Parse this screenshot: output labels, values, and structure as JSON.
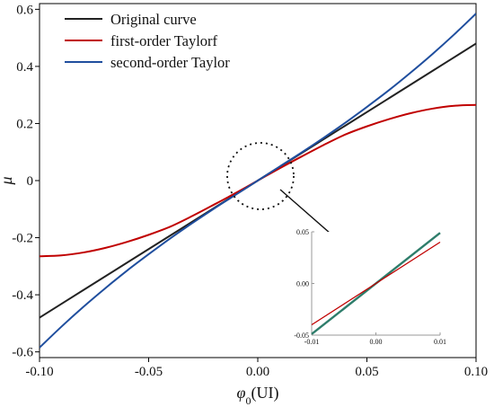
{
  "chart_data": [
    {
      "type": "line",
      "title": "",
      "xlabel": "φ0(UI)",
      "ylabel": "μ",
      "xlim": [
        -0.1,
        0.1
      ],
      "ylim": [
        -0.62,
        0.62
      ],
      "x_ticks": [
        "-0.10",
        "-0.05",
        "0.00",
        "0.05",
        "0.10"
      ],
      "y_ticks": [
        "-0.6",
        "-0.4",
        "-0.2",
        "0",
        "0.2",
        "0.4",
        "0.6"
      ],
      "legend_position": "top-left",
      "series": [
        {
          "name": "Original curve",
          "color": "#222222",
          "x": [
            -0.1,
            -0.08,
            -0.06,
            -0.04,
            -0.02,
            0,
            0.02,
            0.04,
            0.06,
            0.08,
            0.1
          ],
          "y": [
            -0.48,
            -0.384,
            -0.288,
            -0.192,
            -0.096,
            0,
            0.096,
            0.192,
            0.288,
            0.384,
            0.48
          ]
        },
        {
          "name": "first-order Taylorf",
          "color": "#c00000",
          "x": [
            -0.1,
            -0.09,
            -0.08,
            -0.07,
            -0.06,
            -0.05,
            -0.04,
            -0.03,
            -0.02,
            -0.01,
            0,
            0.01,
            0.02,
            0.03,
            0.04,
            0.05,
            0.06,
            0.07,
            0.08,
            0.09,
            0.1
          ],
          "y": [
            -0.265,
            -0.262,
            -0.252,
            -0.236,
            -0.215,
            -0.19,
            -0.161,
            -0.124,
            -0.084,
            -0.043,
            0,
            0.043,
            0.084,
            0.124,
            0.161,
            0.19,
            0.215,
            0.236,
            0.252,
            0.262,
            0.265
          ]
        },
        {
          "name": "second-order Taylor",
          "color": "#1f4e9e",
          "x": [
            -0.1,
            -0.09,
            -0.08,
            -0.07,
            -0.06,
            -0.05,
            -0.04,
            -0.03,
            -0.02,
            -0.01,
            0,
            0.01,
            0.02,
            0.03,
            0.04,
            0.05,
            0.06,
            0.07,
            0.08,
            0.09,
            0.1
          ],
          "y": [
            -0.585,
            -0.512,
            -0.443,
            -0.378,
            -0.316,
            -0.258,
            -0.202,
            -0.149,
            -0.098,
            -0.049,
            0,
            0.049,
            0.098,
            0.149,
            0.202,
            0.258,
            0.316,
            0.378,
            0.443,
            0.512,
            0.585
          ]
        }
      ]
    },
    {
      "type": "line",
      "title": "",
      "xlim": [
        -0.01,
        0.01
      ],
      "ylim": [
        -0.05,
        0.05
      ],
      "x_ticks": [
        "-0.01",
        "0.00",
        "0.01"
      ],
      "y_ticks": [
        "-0.05",
        "0.00",
        "0.05"
      ],
      "series": [
        {
          "color": "#2e7d6b",
          "x": [
            -0.01,
            0.01
          ],
          "y": [
            -0.049,
            0.049
          ]
        },
        {
          "color": "#c00000",
          "x": [
            -0.01,
            0.01
          ],
          "y": [
            -0.04,
            0.04
          ]
        }
      ]
    }
  ]
}
